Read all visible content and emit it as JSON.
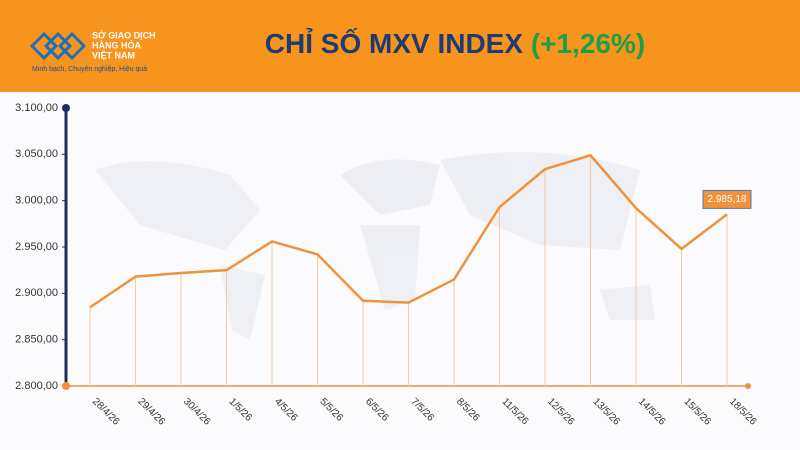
{
  "header": {
    "logo_lines": [
      "SỞ GIAO DỊCH",
      "HÀNG HÓA",
      "VIỆT NAM"
    ],
    "tagline": "Minh bạch, Chuyên nghiệp, Hiệu quả",
    "title": "CHỈ SỐ MXV INDEX",
    "change": "(+1,26%)"
  },
  "chart_data": {
    "type": "line",
    "categories": [
      "28/4/26",
      "29/4/26",
      "30/4/26",
      "1/5/26",
      "4/5/26",
      "5/5/26",
      "6/5/26",
      "7/5/26",
      "8/5/26",
      "11/5/26",
      "12/5/26",
      "13/5/26",
      "14/5/26",
      "15/5/26",
      "18/5/26"
    ],
    "values": [
      2885,
      2918,
      2922,
      2925,
      2956,
      2942,
      2892,
      2890,
      2915,
      2993,
      3034,
      3049,
      2992,
      2948,
      2985.18
    ],
    "value_labels": [
      null,
      null,
      null,
      null,
      null,
      null,
      null,
      null,
      null,
      null,
      null,
      null,
      null,
      null,
      "2.985,18"
    ],
    "color": "#f0923a",
    "ylim": [
      2800,
      3100
    ],
    "yticks": [
      {
        "value": 2800,
        "label": "2.800,00"
      },
      {
        "value": 2850,
        "label": "2.850,00"
      },
      {
        "value": 2900,
        "label": "2.900,00"
      },
      {
        "value": 2950,
        "label": "2.950,00"
      },
      {
        "value": 3000,
        "label": "3.000,00"
      },
      {
        "value": 3050,
        "label": "3.050,00"
      },
      {
        "value": 3100,
        "label": "3.100,00"
      }
    ]
  }
}
